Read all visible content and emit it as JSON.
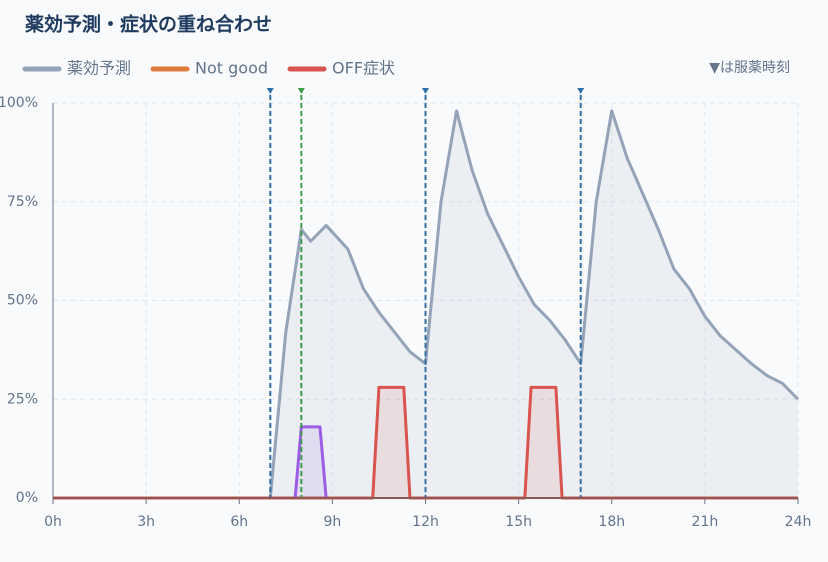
{
  "chart_data": {
    "type": "line",
    "title": "薬効予測・症状の重ね合わせ",
    "note": "▼は服薬時刻",
    "xlim": [
      0,
      24
    ],
    "xticks": [
      {
        "value": 0,
        "label": "0h"
      },
      {
        "value": 3,
        "label": "3h"
      },
      {
        "value": 6,
        "label": "6h"
      },
      {
        "value": 9,
        "label": "9h"
      },
      {
        "value": 12,
        "label": "12h"
      },
      {
        "value": 15,
        "label": "15h"
      },
      {
        "value": 18,
        "label": "18h"
      },
      {
        "value": 21,
        "label": "21h"
      },
      {
        "value": 24,
        "label": "24h"
      }
    ],
    "ylim": [
      0,
      100
    ],
    "yticks": [
      {
        "value": 0,
        "label": "0%"
      },
      {
        "value": 25,
        "label": "25%"
      },
      {
        "value": 50,
        "label": "50%"
      },
      {
        "value": 75,
        "label": "75%"
      },
      {
        "value": 100,
        "label": "100%"
      }
    ],
    "grid": true,
    "dose_times": [
      7,
      12,
      17
    ],
    "dose_color": "#2f6ea5",
    "events": [
      {
        "x": 8,
        "color": "#3b9a4a"
      }
    ],
    "series": [
      {
        "name": "薬効予測",
        "color": "#94a3b8",
        "x": [
          0,
          7,
          7.5,
          8,
          8.3,
          8.8,
          9.5,
          10,
          10.5,
          11,
          11.5,
          12,
          12.5,
          13,
          13.5,
          14,
          14.5,
          15,
          15.5,
          16,
          16.5,
          17,
          17.5,
          18,
          18.5,
          19,
          19.5,
          20,
          20.5,
          21,
          21.5,
          22,
          22.5,
          23,
          23.5,
          24
        ],
        "values": [
          0,
          0,
          42,
          68,
          65,
          69,
          63,
          53,
          47,
          42,
          37,
          34,
          75,
          98,
          83,
          72,
          64,
          56,
          49,
          45,
          40,
          34,
          75,
          98,
          86,
          77,
          68,
          58,
          53,
          46,
          41,
          37.5,
          34,
          31,
          29,
          25
        ]
      },
      {
        "name": "Not good",
        "color": "#e07b39",
        "x": [],
        "values": []
      },
      {
        "name": "OFF症状",
        "color": "#d9534f",
        "x": [
          0,
          10.3,
          10.5,
          11.3,
          11.5,
          15.2,
          15.4,
          16.2,
          16.4,
          24
        ],
        "values": [
          0,
          0,
          28,
          28,
          0,
          0,
          28,
          28,
          0,
          0
        ]
      },
      {
        "color": "#9b5de5",
        "x": [
          7.8,
          8,
          8.6,
          8.8
        ],
        "values": [
          0,
          18,
          18,
          0
        ]
      }
    ]
  }
}
